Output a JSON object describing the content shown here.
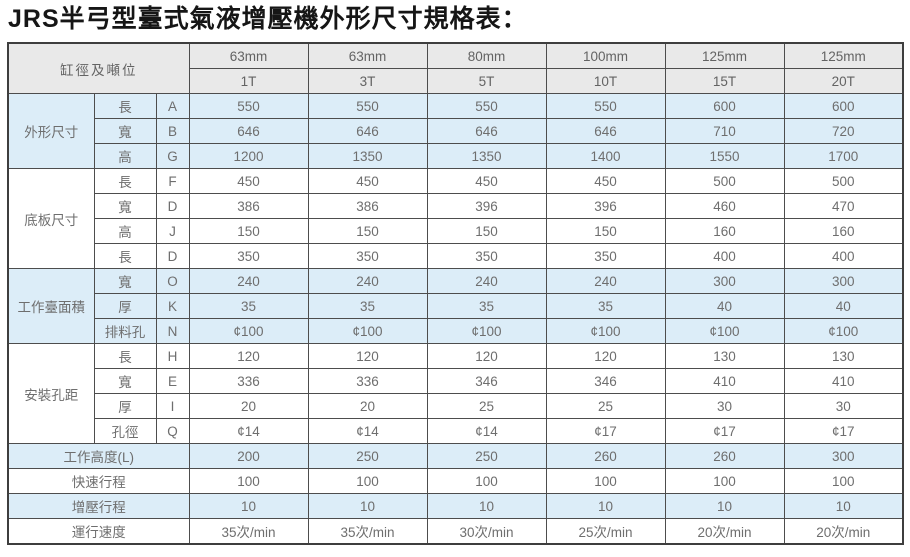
{
  "title": "JRS半弓型臺式氣液增壓機外形尺寸規格表：",
  "table": {
    "corner_header": "缸徑及噸位",
    "columns": [
      {
        "bore": "63mm",
        "tonnage": "1T"
      },
      {
        "bore": "63mm",
        "tonnage": "3T"
      },
      {
        "bore": "80mm",
        "tonnage": "5T"
      },
      {
        "bore": "100mm",
        "tonnage": "10T"
      },
      {
        "bore": "125mm",
        "tonnage": "15T"
      },
      {
        "bore": "125mm",
        "tonnage": "20T"
      }
    ],
    "groups": [
      {
        "label": "外形尺寸",
        "shade": "blue",
        "rows": [
          {
            "sub": "長",
            "code": "A",
            "values": [
              "550",
              "550",
              "550",
              "550",
              "600",
              "600"
            ]
          },
          {
            "sub": "寬",
            "code": "B",
            "values": [
              "646",
              "646",
              "646",
              "646",
              "710",
              "720"
            ]
          },
          {
            "sub": "高",
            "code": "G",
            "values": [
              "1200",
              "1350",
              "1350",
              "1400",
              "1550",
              "1700"
            ]
          }
        ]
      },
      {
        "label": "底板尺寸",
        "shade": "white",
        "rows": [
          {
            "sub": "長",
            "code": "F",
            "values": [
              "450",
              "450",
              "450",
              "450",
              "500",
              "500"
            ]
          },
          {
            "sub": "寬",
            "code": "D",
            "values": [
              "386",
              "386",
              "396",
              "396",
              "460",
              "470"
            ]
          },
          {
            "sub": "高",
            "code": "J",
            "values": [
              "150",
              "150",
              "150",
              "150",
              "160",
              "160"
            ]
          },
          {
            "sub": "長",
            "code": "D",
            "values": [
              "350",
              "350",
              "350",
              "350",
              "400",
              "400"
            ]
          }
        ]
      },
      {
        "label": "工作臺面積",
        "shade": "blue",
        "rows": [
          {
            "sub": "寬",
            "code": "O",
            "values": [
              "240",
              "240",
              "240",
              "240",
              "300",
              "300"
            ]
          },
          {
            "sub": "厚",
            "code": "K",
            "values": [
              "35",
              "35",
              "35",
              "35",
              "40",
              "40"
            ]
          },
          {
            "sub": "排料孔",
            "code": "N",
            "values": [
              "¢100",
              "¢100",
              "¢100",
              "¢100",
              "¢100",
              "¢100"
            ]
          }
        ]
      },
      {
        "label": "安裝孔距",
        "shade": "white",
        "rows": [
          {
            "sub": "長",
            "code": "H",
            "values": [
              "120",
              "120",
              "120",
              "120",
              "130",
              "130"
            ]
          },
          {
            "sub": "寬",
            "code": "E",
            "values": [
              "336",
              "336",
              "346",
              "346",
              "410",
              "410"
            ]
          },
          {
            "sub": "厚",
            "code": "I",
            "values": [
              "20",
              "20",
              "25",
              "25",
              "30",
              "30"
            ]
          },
          {
            "sub": "孔徑",
            "code": "Q",
            "values": [
              "¢14",
              "¢14",
              "¢14",
              "¢17",
              "¢17",
              "¢17"
            ]
          }
        ]
      }
    ],
    "footer_rows": [
      {
        "label": "工作高度(L)",
        "shade": "blue",
        "values": [
          "200",
          "250",
          "250",
          "260",
          "260",
          "300"
        ]
      },
      {
        "label": "快速行程",
        "shade": "white",
        "values": [
          "100",
          "100",
          "100",
          "100",
          "100",
          "100"
        ]
      },
      {
        "label": "增壓行程",
        "shade": "blue",
        "values": [
          "10",
          "10",
          "10",
          "10",
          "10",
          "10"
        ]
      },
      {
        "label": "運行速度",
        "shade": "white",
        "values": [
          "35次/min",
          "35次/min",
          "30次/min",
          "25次/min",
          "20次/min",
          "20次/min"
        ]
      }
    ],
    "colors": {
      "header_bg": "#e9e9e9",
      "row_blue": "#dcedf8",
      "row_white": "#ffffff",
      "border": "#4d4d4d",
      "value_text": "#6e6e6e",
      "label_text": "#4f4f4f",
      "title_text": "#161616"
    }
  }
}
